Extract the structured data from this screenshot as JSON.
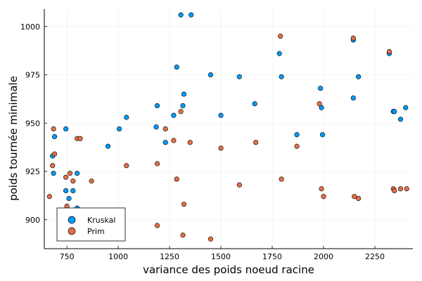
{
  "chart_data": {
    "type": "scatter",
    "xlabel": "variance des poids noeud racine",
    "ylabel": "poids tournée minimale",
    "xlim": [
      640,
      2435
    ],
    "ylim": [
      885,
      1009
    ],
    "x_ticks": [
      750,
      1000,
      1250,
      1500,
      1750,
      2000,
      2250
    ],
    "y_ticks": [
      900,
      925,
      950,
      975,
      1000
    ],
    "grid": true,
    "legend_position": "bottom-left",
    "series": [
      {
        "name": "Kruskal",
        "color": "#009AFA",
        "points": [
          [
            1305,
            1006
          ],
          [
            1355,
            1006
          ],
          [
            1285,
            979
          ],
          [
            1450,
            975
          ],
          [
            1590,
            974
          ],
          [
            1795,
            974
          ],
          [
            2170,
            974
          ],
          [
            1785,
            986
          ],
          [
            2145,
            993
          ],
          [
            2320,
            986
          ],
          [
            1320,
            965
          ],
          [
            1985,
            968
          ],
          [
            2145,
            963
          ],
          [
            1315,
            959
          ],
          [
            1190,
            959
          ],
          [
            1040,
            953
          ],
          [
            1500,
            954
          ],
          [
            1270,
            954
          ],
          [
            1665,
            960
          ],
          [
            1990,
            958
          ],
          [
            2340,
            956
          ],
          [
            2345,
            956
          ],
          [
            2375,
            952
          ],
          [
            2400,
            958
          ],
          [
            1185,
            948
          ],
          [
            1005,
            947
          ],
          [
            745,
            947
          ],
          [
            690,
            943
          ],
          [
            1870,
            944
          ],
          [
            1995,
            944
          ],
          [
            1230,
            940
          ],
          [
            950,
            938
          ],
          [
            680,
            933
          ],
          [
            685,
            924
          ],
          [
            800,
            924
          ],
          [
            745,
            915
          ],
          [
            780,
            915
          ],
          [
            760,
            911
          ],
          [
            800,
            906
          ]
        ]
      },
      {
        "name": "Prim",
        "color": "#E26F46",
        "points": [
          [
            1790,
            995
          ],
          [
            2145,
            994
          ],
          [
            2320,
            987
          ],
          [
            1980,
            960
          ],
          [
            1305,
            956
          ],
          [
            1230,
            947
          ],
          [
            685,
            947
          ],
          [
            800,
            942
          ],
          [
            815,
            942
          ],
          [
            1350,
            940
          ],
          [
            1270,
            941
          ],
          [
            1670,
            940
          ],
          [
            1500,
            937
          ],
          [
            1870,
            938
          ],
          [
            690,
            934
          ],
          [
            1040,
            928
          ],
          [
            1190,
            929
          ],
          [
            680,
            928
          ],
          [
            765,
            924
          ],
          [
            745,
            922
          ],
          [
            1285,
            921
          ],
          [
            1795,
            921
          ],
          [
            780,
            920
          ],
          [
            870,
            920
          ],
          [
            1590,
            918
          ],
          [
            1990,
            916
          ],
          [
            2340,
            916
          ],
          [
            2345,
            915
          ],
          [
            2375,
            916
          ],
          [
            2405,
            916
          ],
          [
            2000,
            912
          ],
          [
            2150,
            912
          ],
          [
            2170,
            911
          ],
          [
            665,
            912
          ],
          [
            1320,
            908
          ],
          [
            750,
            907
          ],
          [
            1190,
            897
          ],
          [
            1315,
            892
          ],
          [
            1450,
            890
          ]
        ]
      }
    ]
  }
}
